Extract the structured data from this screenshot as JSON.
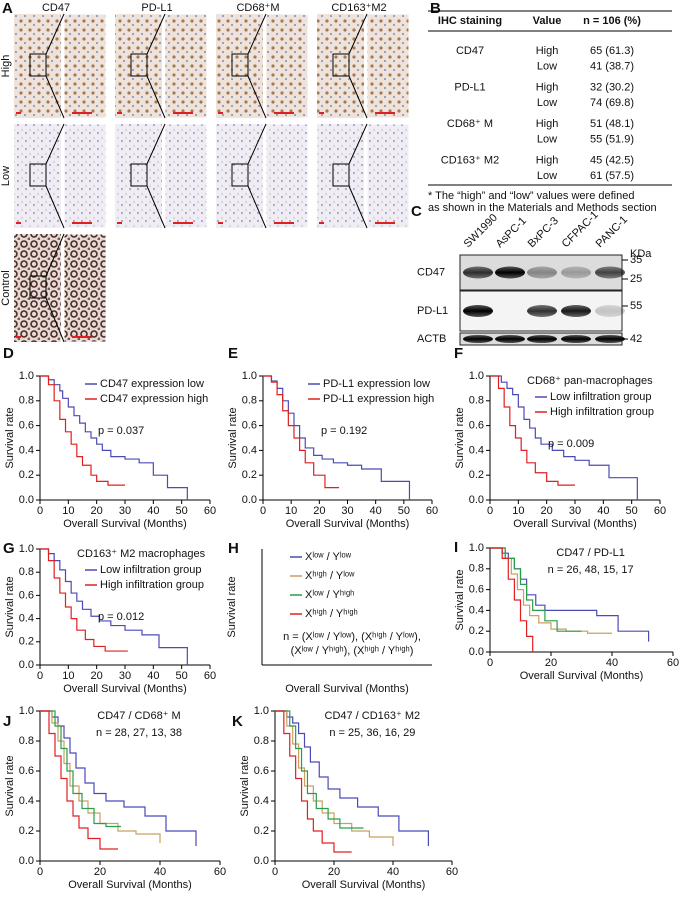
{
  "panel_a": {
    "label": "A",
    "columns": [
      "CD47",
      "PD-L1",
      "CD68⁺M",
      "CD163⁺M2"
    ],
    "rows": [
      "High",
      "Low",
      "Control"
    ]
  },
  "table_b": {
    "label": "B",
    "header": [
      "IHC staining",
      "Value",
      "n = 106 (%)"
    ],
    "groups": [
      {
        "marker": "CD47",
        "rows": [
          [
            "High",
            "65 (61.3)"
          ],
          [
            "Low",
            "41 (38.7)"
          ]
        ]
      },
      {
        "marker": "PD-L1",
        "rows": [
          [
            "High",
            "32 (30.2)"
          ],
          [
            "Low",
            "74 (69.8)"
          ]
        ]
      },
      {
        "marker": "CD68⁺ M",
        "rows": [
          [
            "High",
            "51 (48.1)"
          ],
          [
            "Low",
            "55 (51.9)"
          ]
        ]
      },
      {
        "marker": "CD163⁺ M2",
        "rows": [
          [
            "High",
            "45 (42.5)"
          ],
          [
            "Low",
            "61 (57.5)"
          ]
        ]
      }
    ],
    "footnote": [
      "* The “high” and “low” values were defined",
      "as shown in the Materials and Methods section"
    ]
  },
  "blot_c": {
    "label": "C",
    "lanes": [
      "SW1990",
      "AsPC-1",
      "BxPC-3",
      "CFPAC-1",
      "PANC-1"
    ],
    "unit": "KDa",
    "blots": [
      {
        "name": "CD47",
        "markers": [
          35,
          25
        ]
      },
      {
        "name": "PD-L1",
        "markers": [
          55
        ]
      },
      {
        "name": "ACTB",
        "markers": [
          42
        ]
      }
    ]
  },
  "chart_data": [
    {
      "type": "line",
      "step": true,
      "label": "D",
      "xlabel": "Overall Survival (Months)",
      "ylabel": "Survival rate",
      "xlim": [
        0,
        60
      ],
      "ylim": [
        0,
        1
      ],
      "xticks": [
        0,
        10,
        20,
        30,
        40,
        50,
        60
      ],
      "yticks": [
        {
          "value": 0,
          "label": "0.0"
        },
        0.2,
        0.4,
        0.6,
        0.8,
        {
          "value": 1,
          "label": "1.0"
        }
      ],
      "annotation": "p = 0.037",
      "series": [
        {
          "name": "CD47 expression low",
          "color": "#4b4bb8",
          "x": [
            0,
            3,
            5,
            7,
            8,
            10,
            12,
            14,
            16,
            18,
            20,
            22,
            25,
            30,
            35,
            40,
            45,
            52
          ],
          "values": [
            1,
            0.97,
            0.93,
            0.88,
            0.82,
            0.75,
            0.68,
            0.62,
            0.55,
            0.5,
            0.45,
            0.4,
            0.35,
            0.33,
            0.3,
            0.2,
            0.1,
            0
          ]
        },
        {
          "name": "CD47 expression high",
          "color": "#e02020",
          "x": [
            0,
            3,
            5,
            7,
            9,
            11,
            13,
            15,
            18,
            20,
            24,
            30
          ],
          "values": [
            1,
            0.93,
            0.8,
            0.65,
            0.55,
            0.45,
            0.35,
            0.28,
            0.2,
            0.15,
            0.12,
            0.12
          ]
        }
      ]
    },
    {
      "type": "line",
      "step": true,
      "label": "E",
      "xlabel": "Overall Survival (Months)",
      "ylabel": "Survival rate",
      "xlim": [
        0,
        60
      ],
      "ylim": [
        0,
        1
      ],
      "xticks": [
        0,
        10,
        20,
        30,
        40,
        50,
        60
      ],
      "yticks": [
        {
          "value": 0,
          "label": "0.0"
        },
        0.2,
        0.4,
        0.6,
        0.8,
        {
          "value": 1,
          "label": "1.0"
        }
      ],
      "annotation": "p = 0.192",
      "series": [
        {
          "name": "PD-L1 expression low",
          "color": "#4b4bb8",
          "x": [
            0,
            3,
            5,
            7,
            9,
            11,
            13,
            15,
            18,
            21,
            25,
            30,
            35,
            42,
            52
          ],
          "values": [
            1,
            0.96,
            0.9,
            0.8,
            0.7,
            0.6,
            0.5,
            0.42,
            0.36,
            0.33,
            0.3,
            0.28,
            0.25,
            0.15,
            0
          ]
        },
        {
          "name": "PD-L1 expression high",
          "color": "#e02020",
          "x": [
            0,
            3,
            5,
            7,
            9,
            11,
            13,
            15,
            18,
            22,
            27
          ],
          "values": [
            1,
            0.95,
            0.85,
            0.72,
            0.6,
            0.5,
            0.4,
            0.3,
            0.2,
            0.1,
            0.1
          ]
        }
      ]
    },
    {
      "type": "line",
      "step": true,
      "label": "F",
      "xlabel": "Overall Survival (Months)",
      "ylabel": "Survival rate",
      "xlim": [
        0,
        60
      ],
      "ylim": [
        0,
        1
      ],
      "xticks": [
        0,
        10,
        20,
        30,
        40,
        50,
        60
      ],
      "yticks": [
        {
          "value": 0,
          "label": "0.0"
        },
        0.2,
        0.4,
        0.6,
        0.8,
        {
          "value": 1,
          "label": "1.0"
        }
      ],
      "legend_title": "CD68⁺ pan-macrophages",
      "annotation": "p = 0.009",
      "series": [
        {
          "name": "Low infiltration group",
          "color": "#4b4bb8",
          "x": [
            0,
            4,
            6,
            8,
            10,
            12,
            14,
            16,
            18,
            22,
            26,
            30,
            35,
            42,
            52
          ],
          "values": [
            1,
            0.95,
            0.9,
            0.85,
            0.75,
            0.65,
            0.58,
            0.5,
            0.45,
            0.4,
            0.35,
            0.32,
            0.28,
            0.18,
            0
          ]
        },
        {
          "name": "High infiltration group",
          "color": "#e02020",
          "x": [
            0,
            3,
            5,
            7,
            9,
            11,
            13,
            16,
            20,
            24,
            30
          ],
          "values": [
            1,
            0.9,
            0.75,
            0.6,
            0.5,
            0.4,
            0.3,
            0.22,
            0.15,
            0.12,
            0.12
          ]
        }
      ]
    },
    {
      "type": "line",
      "step": true,
      "label": "G",
      "xlabel": "Overall Survival (Months)",
      "ylabel": "Survival rate",
      "xlim": [
        0,
        60
      ],
      "ylim": [
        0,
        1
      ],
      "xticks": [
        0,
        10,
        20,
        30,
        40,
        50,
        60
      ],
      "yticks": [
        {
          "value": 0,
          "label": "0.0"
        },
        0.2,
        0.4,
        0.6,
        0.8,
        {
          "value": 1,
          "label": "1.0"
        }
      ],
      "legend_title": "CD163⁺ M2 macrophages",
      "annotation": "p = 0.012",
      "series": [
        {
          "name": "Low infiltration group",
          "color": "#4b4bb8",
          "x": [
            0,
            3,
            5,
            7,
            9,
            11,
            13,
            15,
            18,
            21,
            25,
            30,
            36,
            42,
            52
          ],
          "values": [
            1,
            0.96,
            0.9,
            0.82,
            0.72,
            0.62,
            0.55,
            0.48,
            0.42,
            0.38,
            0.34,
            0.3,
            0.26,
            0.15,
            0
          ]
        },
        {
          "name": "High infiltration group",
          "color": "#e02020",
          "x": [
            0,
            3,
            5,
            7,
            9,
            11,
            13,
            16,
            19,
            23,
            31
          ],
          "values": [
            1,
            0.9,
            0.75,
            0.62,
            0.5,
            0.4,
            0.3,
            0.22,
            0.16,
            0.12,
            0.12
          ]
        }
      ]
    },
    {
      "type": "line",
      "step": true,
      "label": "H",
      "xlabel": "Overall Survival (Months)",
      "ylabel": "Survival rate",
      "notes": [
        "n = (Xˡᵒʷ / Yˡᵒʷ), (Xʰⁱᵍʰ / Yˡᵒʷ),",
        "(Xˡᵒʷ / Yʰⁱᵍʰ), (Xʰⁱᵍʰ / Yʰⁱᵍʰ)"
      ],
      "series": [
        {
          "name": "Xˡᵒʷ / Yˡᵒʷ",
          "color": "#4b4bb8"
        },
        {
          "name": "Xʰⁱᵍʰ / Yˡᵒʷ",
          "color": "#c8a060"
        },
        {
          "name": "Xˡᵒʷ / Yʰⁱᵍʰ",
          "color": "#2a9d4a"
        },
        {
          "name": "Xʰⁱᵍʰ / Yʰⁱᵍʰ",
          "color": "#e02020"
        }
      ]
    },
    {
      "type": "line",
      "step": true,
      "label": "I",
      "xlabel": "Overall Survival (Months)",
      "ylabel": "Survival rate",
      "xlim": [
        0,
        60
      ],
      "ylim": [
        0,
        1
      ],
      "xticks": [
        0,
        20,
        40,
        60
      ],
      "yticks": [
        {
          "value": 0,
          "label": "0.0"
        },
        0.2,
        0.4,
        0.6,
        0.8,
        {
          "value": 1,
          "label": "1.0"
        }
      ],
      "notes": [
        "CD47 / PD-L1",
        "n = 26, 48, 15, 17"
      ],
      "series": [
        {
          "color": "#4b4bb8",
          "x": [
            0,
            4,
            6,
            8,
            10,
            12,
            15,
            18,
            24,
            35,
            42,
            52
          ],
          "values": [
            1,
            0.95,
            0.9,
            0.8,
            0.7,
            0.55,
            0.45,
            0.4,
            0.4,
            0.35,
            0.2,
            0.1
          ]
        },
        {
          "color": "#c8a060",
          "x": [
            0,
            5,
            7,
            9,
            11,
            13,
            16,
            20,
            25,
            32,
            40
          ],
          "values": [
            1,
            0.9,
            0.75,
            0.6,
            0.45,
            0.35,
            0.28,
            0.22,
            0.2,
            0.18,
            0.18
          ]
        },
        {
          "color": "#2a9d4a",
          "x": [
            0,
            5,
            8,
            10,
            12,
            14,
            18,
            22,
            30
          ],
          "values": [
            1,
            0.9,
            0.8,
            0.65,
            0.5,
            0.4,
            0.3,
            0.2,
            0.2
          ]
        },
        {
          "color": "#e02020",
          "x": [
            0,
            4,
            6,
            8,
            10,
            12,
            14
          ],
          "values": [
            1,
            0.9,
            0.7,
            0.5,
            0.3,
            0.15,
            0
          ]
        }
      ]
    },
    {
      "type": "line",
      "step": true,
      "label": "J",
      "xlabel": "Overall Survival (Months)",
      "ylabel": "Survival rate",
      "xlim": [
        0,
        60
      ],
      "ylim": [
        0,
        1
      ],
      "xticks": [
        0,
        20,
        40,
        60
      ],
      "yticks": [
        {
          "value": 0,
          "label": "0.0"
        },
        0.2,
        0.4,
        0.6,
        0.8,
        {
          "value": 1,
          "label": "1.0"
        }
      ],
      "notes": [
        "CD47 / CD68⁺ M",
        "n = 28, 27, 13, 38"
      ],
      "series": [
        {
          "color": "#4b4bb8",
          "x": [
            0,
            4,
            6,
            8,
            10,
            12,
            15,
            18,
            22,
            28,
            35,
            42,
            52
          ],
          "values": [
            1,
            0.96,
            0.9,
            0.82,
            0.72,
            0.62,
            0.52,
            0.45,
            0.4,
            0.36,
            0.3,
            0.2,
            0.1
          ]
        },
        {
          "color": "#c8a060",
          "x": [
            0,
            4,
            6,
            8,
            10,
            13,
            16,
            20,
            26,
            32,
            40
          ],
          "values": [
            1,
            0.92,
            0.8,
            0.65,
            0.5,
            0.4,
            0.32,
            0.25,
            0.2,
            0.18,
            0.12
          ]
        },
        {
          "color": "#2a9d4a",
          "x": [
            0,
            5,
            7,
            9,
            11,
            14,
            18,
            22,
            27
          ],
          "values": [
            1,
            0.9,
            0.75,
            0.6,
            0.45,
            0.35,
            0.25,
            0.23,
            0.23
          ]
        },
        {
          "color": "#e02020",
          "x": [
            0,
            3,
            5,
            7,
            9,
            11,
            13,
            16,
            20,
            26
          ],
          "values": [
            1,
            0.85,
            0.7,
            0.55,
            0.4,
            0.3,
            0.22,
            0.15,
            0.08,
            0.08
          ]
        }
      ]
    },
    {
      "type": "line",
      "step": true,
      "label": "K",
      "xlabel": "Overall Survival (Months)",
      "ylabel": "Survival rate",
      "xlim": [
        0,
        60
      ],
      "ylim": [
        0,
        1
      ],
      "xticks": [
        0,
        20,
        40,
        60
      ],
      "yticks": [
        {
          "value": 0,
          "label": "0.0"
        },
        0.2,
        0.4,
        0.6,
        0.8,
        {
          "value": 1,
          "label": "1.0"
        }
      ],
      "notes": [
        "CD47 / CD163⁺ M2",
        "n = 25, 36, 16, 29"
      ],
      "series": [
        {
          "color": "#4b4bb8",
          "x": [
            0,
            4,
            6,
            8,
            10,
            12,
            15,
            18,
            22,
            28,
            35,
            42,
            52
          ],
          "values": [
            1,
            0.96,
            0.92,
            0.85,
            0.76,
            0.66,
            0.56,
            0.48,
            0.42,
            0.36,
            0.3,
            0.2,
            0.1
          ]
        },
        {
          "color": "#c8a060",
          "x": [
            0,
            4,
            6,
            8,
            10,
            13,
            16,
            20,
            26,
            32,
            40
          ],
          "values": [
            1,
            0.9,
            0.78,
            0.62,
            0.5,
            0.4,
            0.32,
            0.25,
            0.2,
            0.16,
            0.1
          ]
        },
        {
          "color": "#2a9d4a",
          "x": [
            0,
            5,
            7,
            9,
            11,
            14,
            18,
            22,
            30
          ],
          "values": [
            1,
            0.9,
            0.75,
            0.6,
            0.45,
            0.35,
            0.28,
            0.22,
            0.22
          ]
        },
        {
          "color": "#e02020",
          "x": [
            0,
            3,
            5,
            7,
            9,
            11,
            13,
            16,
            20,
            26
          ],
          "values": [
            1,
            0.85,
            0.7,
            0.55,
            0.4,
            0.28,
            0.2,
            0.12,
            0.06,
            0.06
          ]
        }
      ]
    }
  ]
}
